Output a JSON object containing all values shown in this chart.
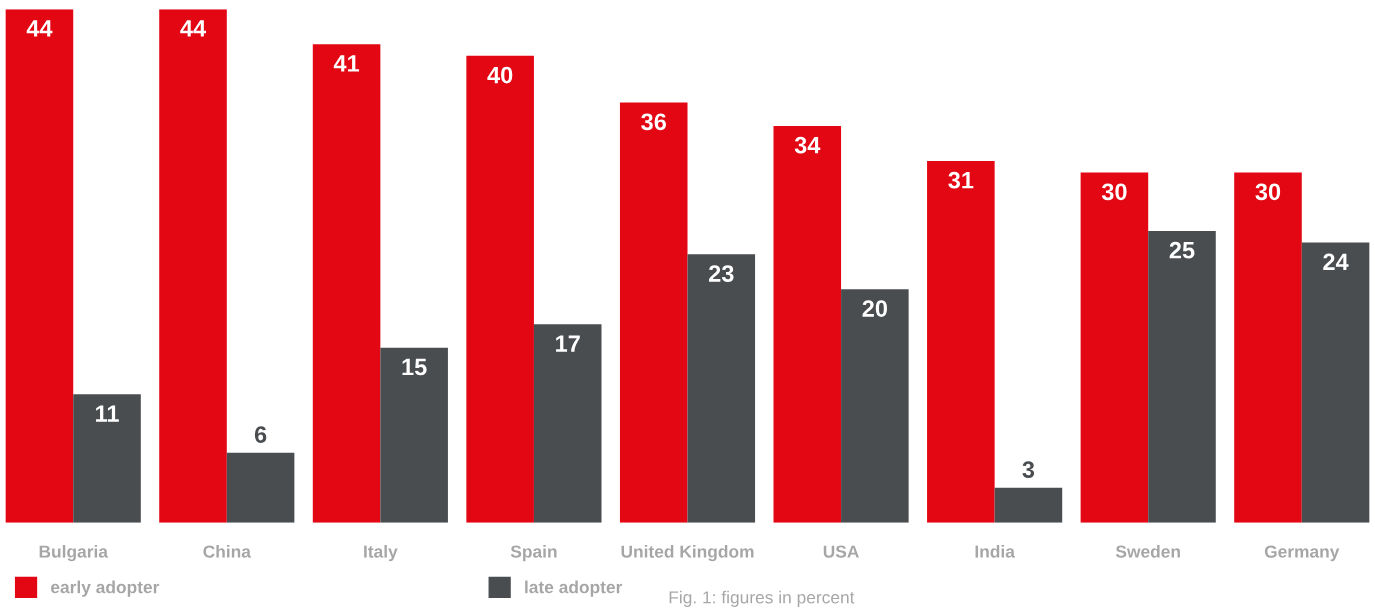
{
  "chart_data": {
    "type": "bar",
    "categories": [
      "Bulgaria",
      "China",
      "Italy",
      "Spain",
      "United Kingdom",
      "USA",
      "India",
      "Sweden",
      "Germany"
    ],
    "series": [
      {
        "name": "early adopter",
        "color": "#e30613",
        "values": [
          44,
          44,
          41,
          40,
          36,
          34,
          31,
          30,
          30
        ]
      },
      {
        "name": "late adopter",
        "color": "#4a4d50",
        "values": [
          11,
          6,
          15,
          17,
          23,
          20,
          3,
          25,
          24
        ]
      }
    ],
    "data_labels": true,
    "grid": false,
    "legend": "bottom left",
    "annotations": [
      "Fig. 1: figures in percent"
    ]
  }
}
